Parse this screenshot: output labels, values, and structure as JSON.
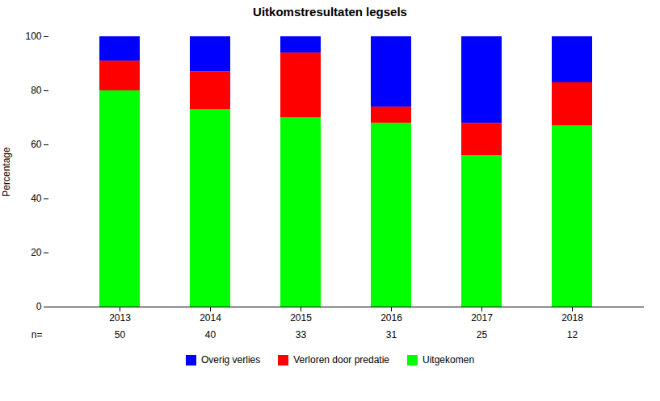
{
  "chart_data": {
    "type": "bar",
    "stacked": true,
    "title": "Uitkomstresultaten legsels",
    "ylabel": "Percentage",
    "categories": [
      "2013",
      "2014",
      "2015",
      "2016",
      "2017",
      "2018"
    ],
    "series": [
      {
        "name": "Uitgekomen",
        "color": "#00ff00",
        "values": [
          80,
          73,
          70,
          68,
          56,
          67
        ]
      },
      {
        "name": "Verloren door predatie",
        "color": "#ff0000",
        "values": [
          11,
          14,
          24,
          6,
          12,
          16
        ]
      },
      {
        "name": "Overig verlies",
        "color": "#0000ff",
        "values": [
          9,
          13,
          6,
          26,
          32,
          17
        ]
      }
    ],
    "n_label": "n=",
    "n": [
      50,
      40,
      33,
      31,
      25,
      12
    ],
    "ylim": [
      0,
      100
    ],
    "yticks": [
      0,
      20,
      40,
      60,
      80,
      100
    ],
    "grid": false,
    "legend": "bottom"
  }
}
